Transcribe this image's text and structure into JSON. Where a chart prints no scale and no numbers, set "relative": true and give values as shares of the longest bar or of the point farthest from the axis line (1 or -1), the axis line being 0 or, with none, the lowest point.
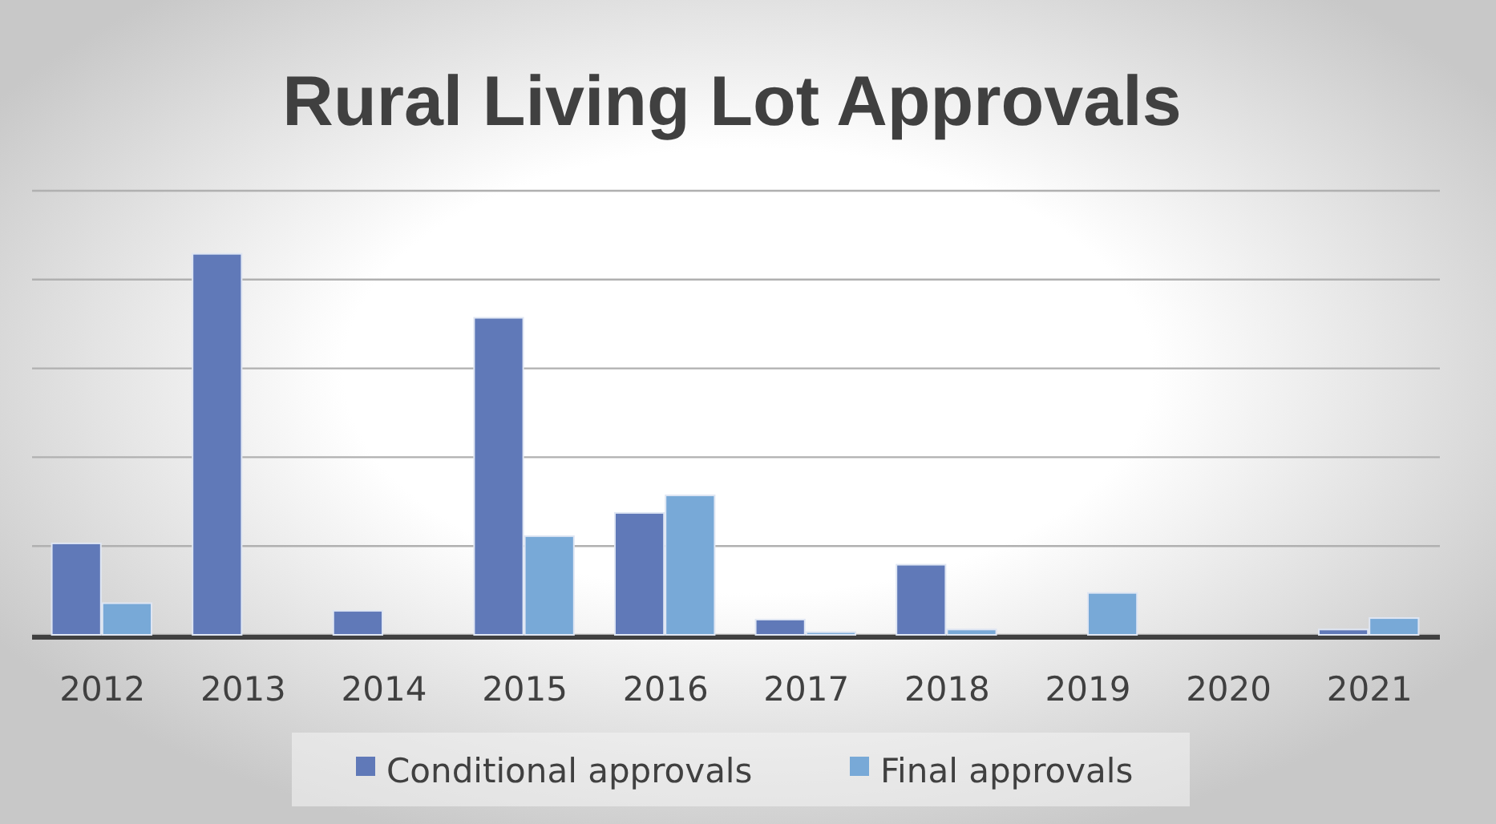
{
  "chart_data": {
    "type": "bar",
    "title": "Rural Living Lot Approvals",
    "relative": true,
    "grid": "y",
    "legend": "bottom",
    "categories": [
      "2012",
      "2013",
      "2014",
      "2015",
      "2016",
      "2017",
      "2018",
      "2019",
      "2020",
      "2021"
    ],
    "series": [
      {
        "name": "Conditional approvals",
        "color": "#6079b8",
        "values": [
          0.24,
          1,
          0.063,
          0.832,
          0.32,
          0.04,
          0.184,
          0,
          0,
          0.014
        ]
      },
      {
        "name": "Final approvals",
        "color": "#78a9d7",
        "values": [
          0.083,
          0,
          0,
          0.259,
          0.366,
          0.007,
          0.014,
          0.11,
          0,
          0.044
        ]
      }
    ]
  }
}
